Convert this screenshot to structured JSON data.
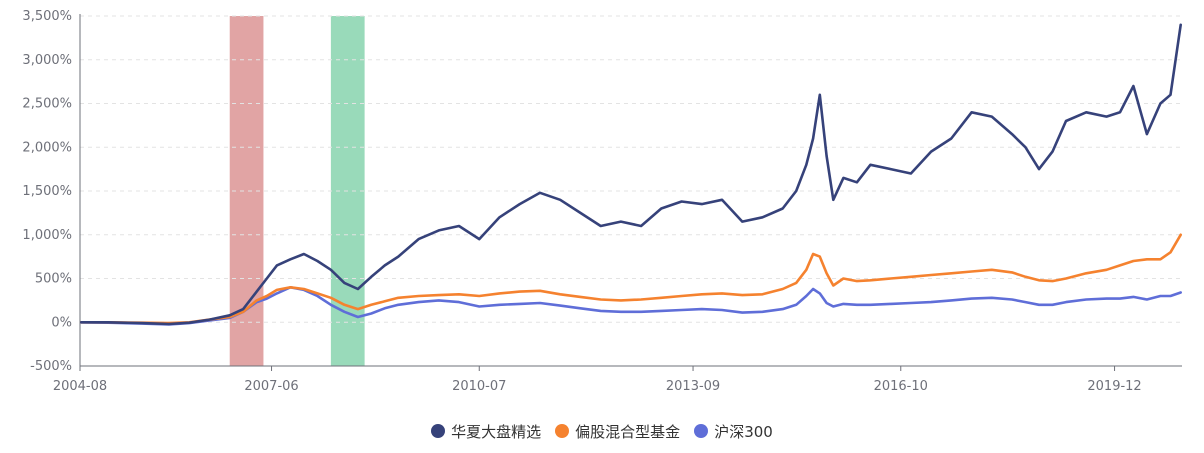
{
  "chart_data": {
    "type": "line",
    "title": "",
    "xlabel": "",
    "ylabel": "",
    "x_ticks": [
      "2004-08",
      "2007-06",
      "2010-07",
      "2013-09",
      "2016-10",
      "2019-12"
    ],
    "y_ticks": [
      "-500%",
      "0%",
      "500%",
      "1,000%",
      "1,500%",
      "2,000%",
      "2,500%",
      "3,000%",
      "3,500%"
    ],
    "ylim": [
      -500,
      3500
    ],
    "xlim": [
      2004.58,
      2020.92
    ],
    "grid": "horizontal dashed",
    "legend_position": "bottom-center",
    "highlight_bands": [
      {
        "x_start": 2006.8,
        "x_end": 2007.3,
        "color": "#d98a8a"
      },
      {
        "x_start": 2008.3,
        "x_end": 2008.8,
        "color": "#7ccfa7"
      }
    ],
    "series": [
      {
        "name": "华夏大盘精选",
        "color": "#36427a",
        "x": [
          2004.6,
          2005.0,
          2005.5,
          2005.9,
          2006.2,
          2006.5,
          2006.8,
          2007.0,
          2007.2,
          2007.35,
          2007.5,
          2007.7,
          2007.9,
          2008.1,
          2008.3,
          2008.5,
          2008.7,
          2008.9,
          2009.1,
          2009.3,
          2009.6,
          2009.9,
          2010.2,
          2010.5,
          2010.8,
          2011.1,
          2011.4,
          2011.7,
          2012.0,
          2012.3,
          2012.6,
          2012.9,
          2013.2,
          2013.5,
          2013.8,
          2014.1,
          2014.4,
          2014.7,
          2015.0,
          2015.2,
          2015.35,
          2015.45,
          2015.55,
          2015.65,
          2015.75,
          2015.9,
          2016.1,
          2016.3,
          2016.6,
          2016.9,
          2017.2,
          2017.5,
          2017.8,
          2018.1,
          2018.4,
          2018.6,
          2018.8,
          2019.0,
          2019.2,
          2019.5,
          2019.8,
          2020.0,
          2020.2,
          2020.4,
          2020.6,
          2020.75,
          2020.9
        ],
        "values": [
          0,
          0,
          -10,
          -20,
          -5,
          30,
          80,
          150,
          350,
          500,
          650,
          720,
          780,
          700,
          600,
          450,
          380,
          520,
          650,
          750,
          950,
          1050,
          1100,
          950,
          1200,
          1350,
          1480,
          1400,
          1250,
          1100,
          1150,
          1100,
          1300,
          1380,
          1350,
          1400,
          1150,
          1200,
          1300,
          1500,
          1800,
          2100,
          2600,
          1900,
          1400,
          1650,
          1600,
          1800,
          1750,
          1700,
          1950,
          2100,
          2400,
          2350,
          2150,
          2000,
          1750,
          1950,
          2300,
          2400,
          2350,
          2400,
          2700,
          2150,
          2500,
          2600,
          3400
        ]
      },
      {
        "name": "偏股混合型基金",
        "color": "#f5822f",
        "x": [
          2004.6,
          2005.0,
          2005.5,
          2005.9,
          2006.2,
          2006.5,
          2006.8,
          2007.0,
          2007.2,
          2007.35,
          2007.5,
          2007.7,
          2007.9,
          2008.1,
          2008.3,
          2008.5,
          2008.7,
          2008.9,
          2009.1,
          2009.3,
          2009.6,
          2009.9,
          2010.2,
          2010.5,
          2010.8,
          2011.1,
          2011.4,
          2011.7,
          2012.0,
          2012.3,
          2012.6,
          2012.9,
          2013.2,
          2013.5,
          2013.8,
          2014.1,
          2014.4,
          2014.7,
          2015.0,
          2015.2,
          2015.35,
          2015.45,
          2015.55,
          2015.65,
          2015.75,
          2015.9,
          2016.1,
          2016.3,
          2016.6,
          2016.9,
          2017.2,
          2017.5,
          2017.8,
          2018.1,
          2018.4,
          2018.6,
          2018.8,
          2019.0,
          2019.2,
          2019.5,
          2019.8,
          2020.0,
          2020.2,
          2020.4,
          2020.6,
          2020.75,
          2020.9
        ],
        "values": [
          0,
          0,
          -5,
          -10,
          0,
          30,
          60,
          120,
          250,
          300,
          370,
          400,
          380,
          330,
          280,
          200,
          150,
          200,
          240,
          280,
          300,
          310,
          320,
          300,
          330,
          350,
          360,
          320,
          290,
          260,
          250,
          260,
          280,
          300,
          320,
          330,
          310,
          320,
          380,
          450,
          600,
          780,
          750,
          560,
          420,
          500,
          470,
          480,
          500,
          520,
          540,
          560,
          580,
          600,
          570,
          520,
          480,
          470,
          500,
          560,
          600,
          650,
          700,
          720,
          720,
          800,
          1000
        ]
      },
      {
        "name": "沪深300",
        "color": "#5f6ed8",
        "x": [
          2004.6,
          2005.0,
          2005.5,
          2005.9,
          2006.2,
          2006.5,
          2006.8,
          2007.0,
          2007.2,
          2007.35,
          2007.5,
          2007.7,
          2007.9,
          2008.1,
          2008.3,
          2008.5,
          2008.7,
          2008.9,
          2009.1,
          2009.3,
          2009.6,
          2009.9,
          2010.2,
          2010.5,
          2010.8,
          2011.1,
          2011.4,
          2011.7,
          2012.0,
          2012.3,
          2012.6,
          2012.9,
          2013.2,
          2013.5,
          2013.8,
          2014.1,
          2014.4,
          2014.7,
          2015.0,
          2015.2,
          2015.35,
          2015.45,
          2015.55,
          2015.65,
          2015.75,
          2015.9,
          2016.1,
          2016.3,
          2016.6,
          2016.9,
          2017.2,
          2017.5,
          2017.8,
          2018.1,
          2018.4,
          2018.6,
          2018.8,
          2019.0,
          2019.2,
          2019.5,
          2019.8,
          2020.0,
          2020.2,
          2020.4,
          2020.6,
          2020.75,
          2020.9
        ],
        "values": [
          0,
          -5,
          -15,
          -25,
          -10,
          20,
          50,
          120,
          230,
          270,
          330,
          400,
          370,
          300,
          200,
          120,
          60,
          100,
          160,
          200,
          230,
          250,
          230,
          180,
          200,
          210,
          220,
          190,
          160,
          130,
          120,
          120,
          130,
          140,
          150,
          140,
          110,
          120,
          150,
          200,
          300,
          380,
          330,
          220,
          180,
          210,
          200,
          200,
          210,
          220,
          230,
          250,
          270,
          280,
          260,
          230,
          200,
          200,
          230,
          260,
          270,
          270,
          290,
          260,
          300,
          300,
          340
        ]
      }
    ]
  }
}
